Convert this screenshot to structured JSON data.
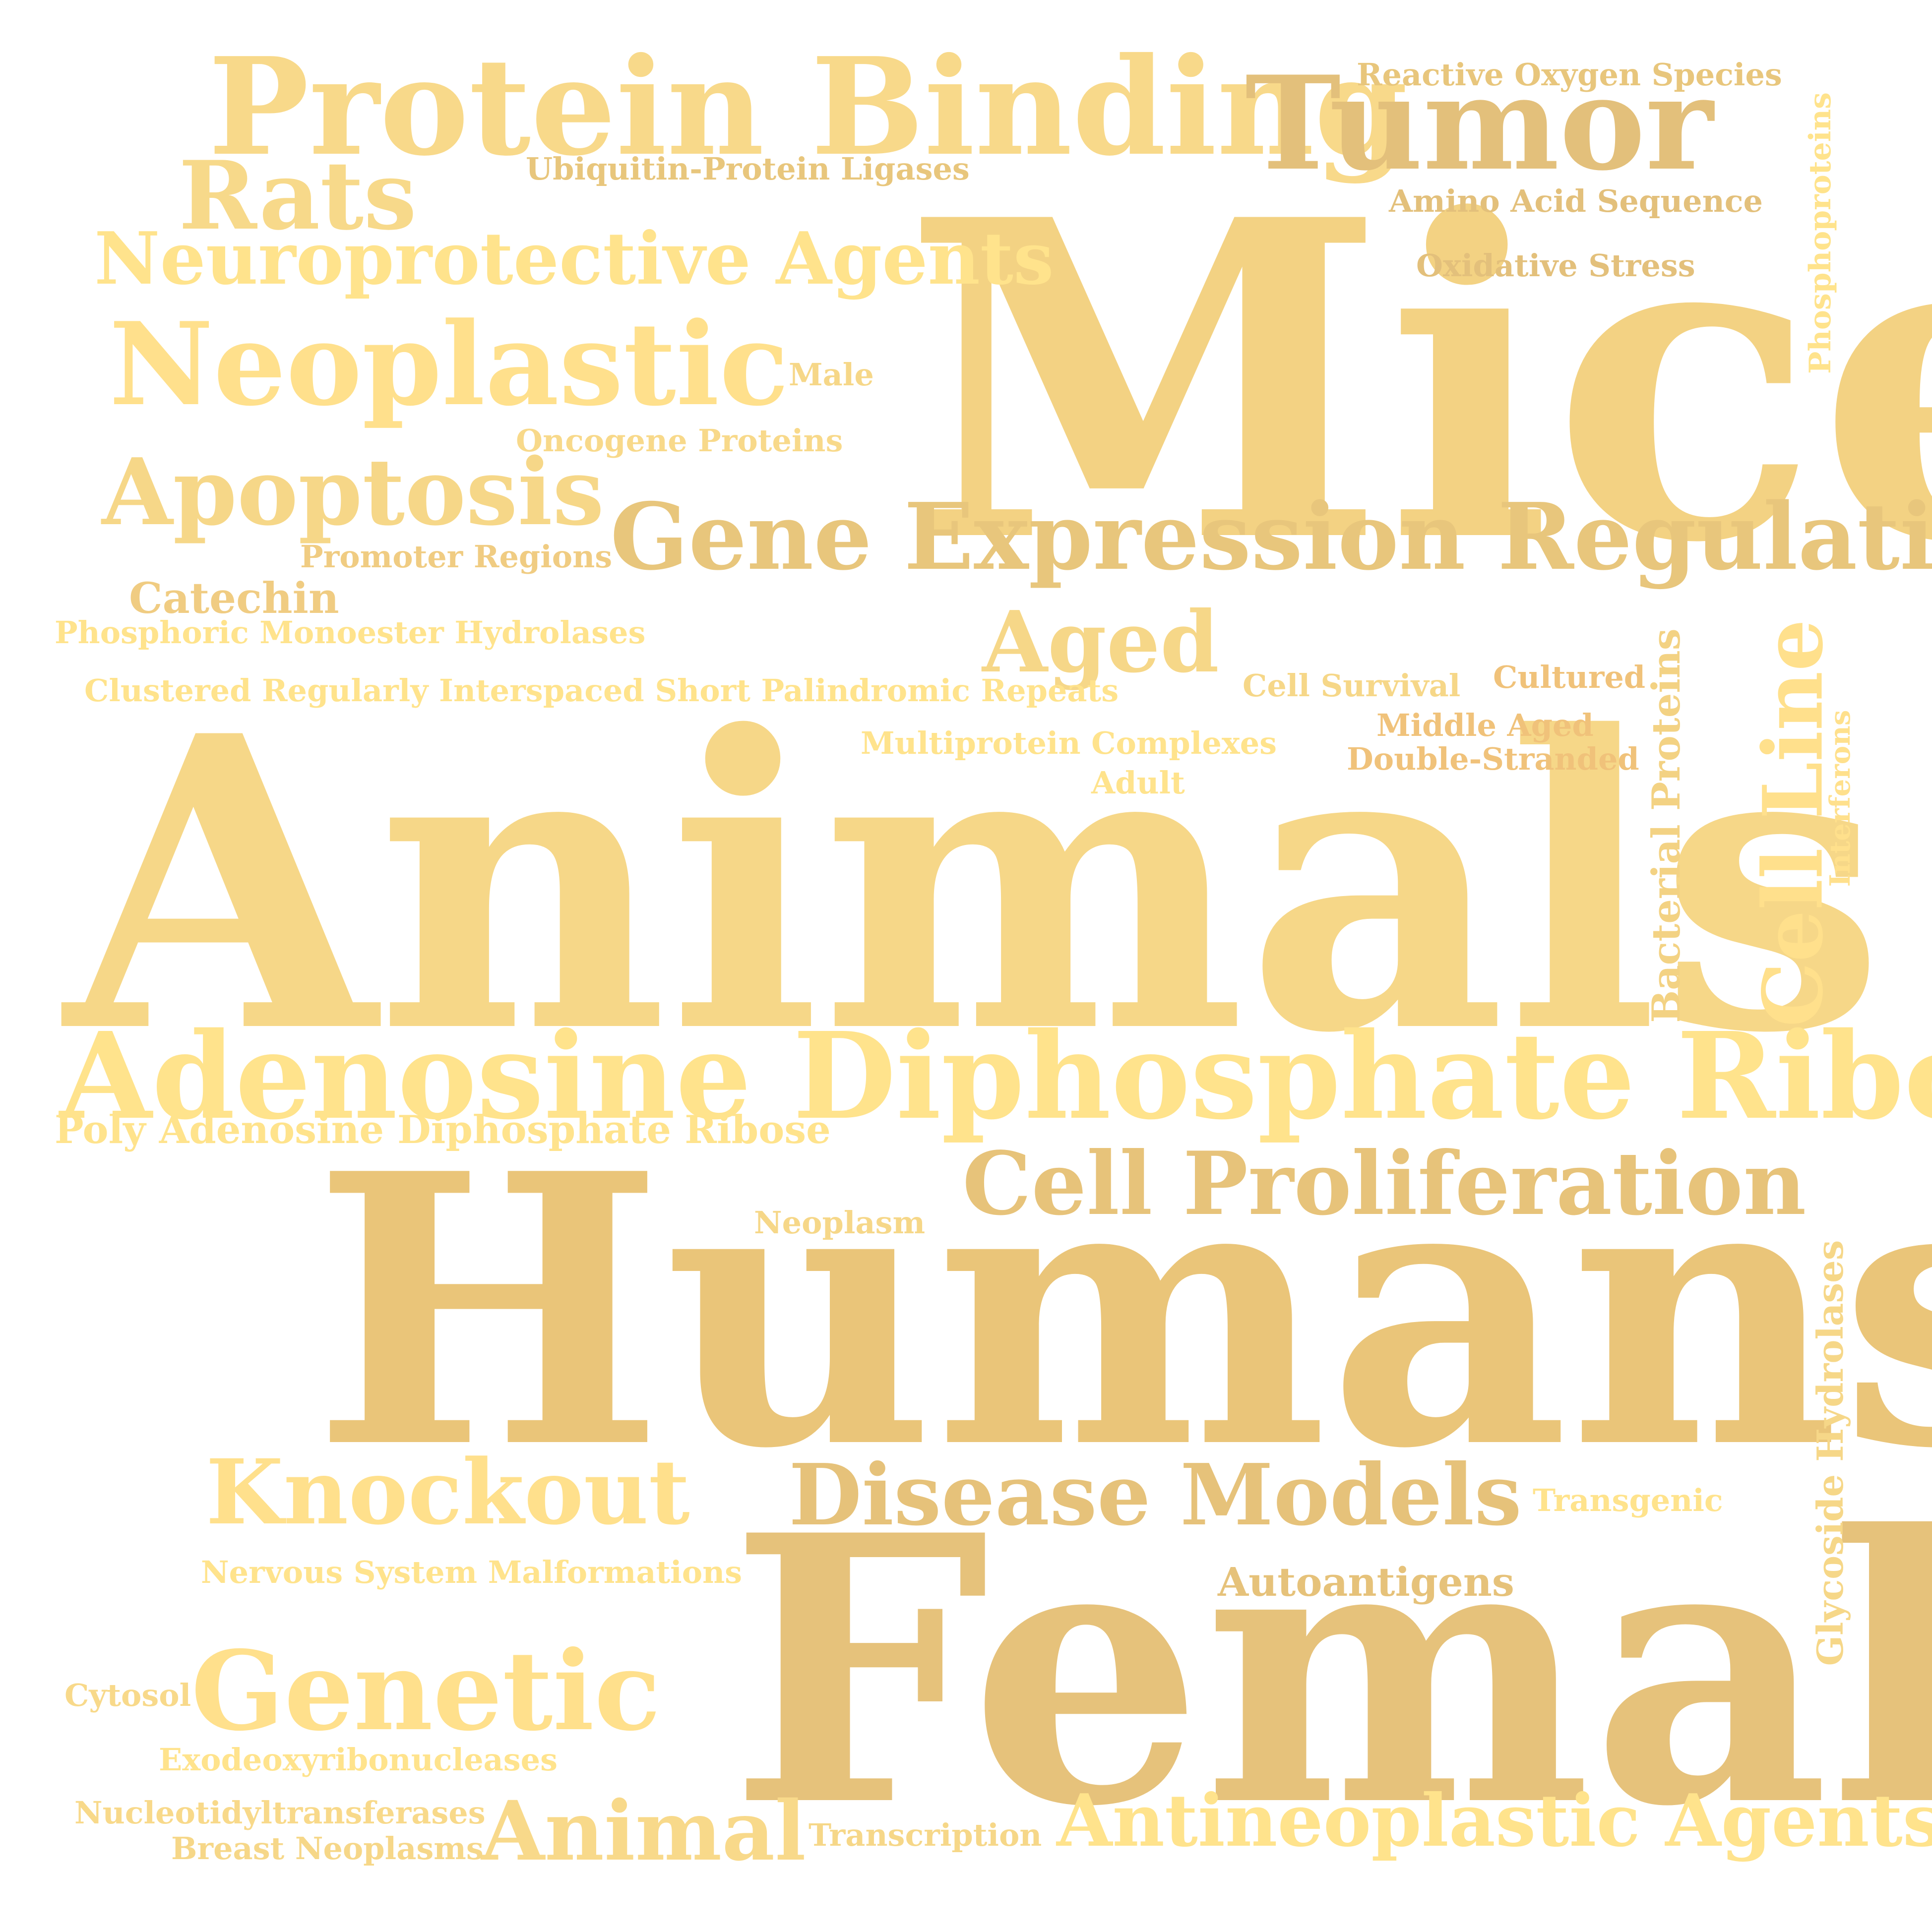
{
  "words": {
    "mice": "Mice",
    "animals": "Animals",
    "humans": "Humans",
    "female": "Female",
    "protein_binding": "Protein Binding",
    "tumor": "Tumor",
    "rats": "Rats",
    "neuroprotective_agents": "Neuroprotective Agents",
    "neoplastic": "Neoplastic",
    "apoptosis": "Apoptosis",
    "gene_expression_regulation": "Gene Expression Regulation",
    "aged": "Aged",
    "adenosine_diphosphate_ribose": "Adenosine Diphosphate Ribose",
    "cell_proliferation": "Cell Proliferation",
    "knockout": "Knockout",
    "disease_models": "Disease Models",
    "genetic": "Genetic",
    "animal": "Animal",
    "antineoplastic_agents": "Antineoplastic Agents",
    "cell_line": "Cell Line",
    "bacterial_proteins": "Bacterial Proteins",
    "glycoside_hydrolases": "Glycoside Hydrolases",
    "phosphoproteins": "Phosphoproteins",
    "interferons": "Interferons",
    "reactive_oxygen_species": "Reactive Oxygen Species",
    "ubiquitin_protein_ligases": "Ubiquitin-Protein Ligases",
    "amino_acid_sequence": "Amino Acid Sequence",
    "oxidative_stress": "Oxidative Stress",
    "male": "Male",
    "oncogene_proteins": "Oncogene Proteins",
    "promoter_regions": "Promoter Regions",
    "catechin": "Catechin",
    "phosphoric_monoester_hydrolases": "Phosphoric Monoester Hydrolases",
    "crispr": "Clustered Regularly Interspaced Short Palindromic Repeats",
    "cell_survival": "Cell Survival",
    "cultured": "Cultured",
    "middle_aged": "Middle Aged",
    "double_stranded": "Double-Stranded",
    "multiprotein_complexes": "Multiprotein Complexes",
    "adult": "Adult",
    "poly_adp_ribose": "Poly Adenosine Diphosphate Ribose",
    "neoplasm": "Neoplasm",
    "transgenic": "Transgenic",
    "nervous_system_malformations": "Nervous System Malformations",
    "autoantigens": "Autoantigens",
    "cytosol": "Cytosol",
    "exodeoxyribonucleases": "Exodeoxyribonucleases",
    "nucleotidyltransferases": "Nucleotidyltransferases",
    "breast_neoplasms": "Breast Neoplasms",
    "transcription": "Transcription"
  },
  "colors": {
    "gold_light": "#FFE38C",
    "gold_mid": "#F5D385",
    "gold_deep": "#E9C67A",
    "gold_tan": "#E3C07B",
    "gold_orange": "#F0C27A",
    "background": "#FFFFFF"
  }
}
